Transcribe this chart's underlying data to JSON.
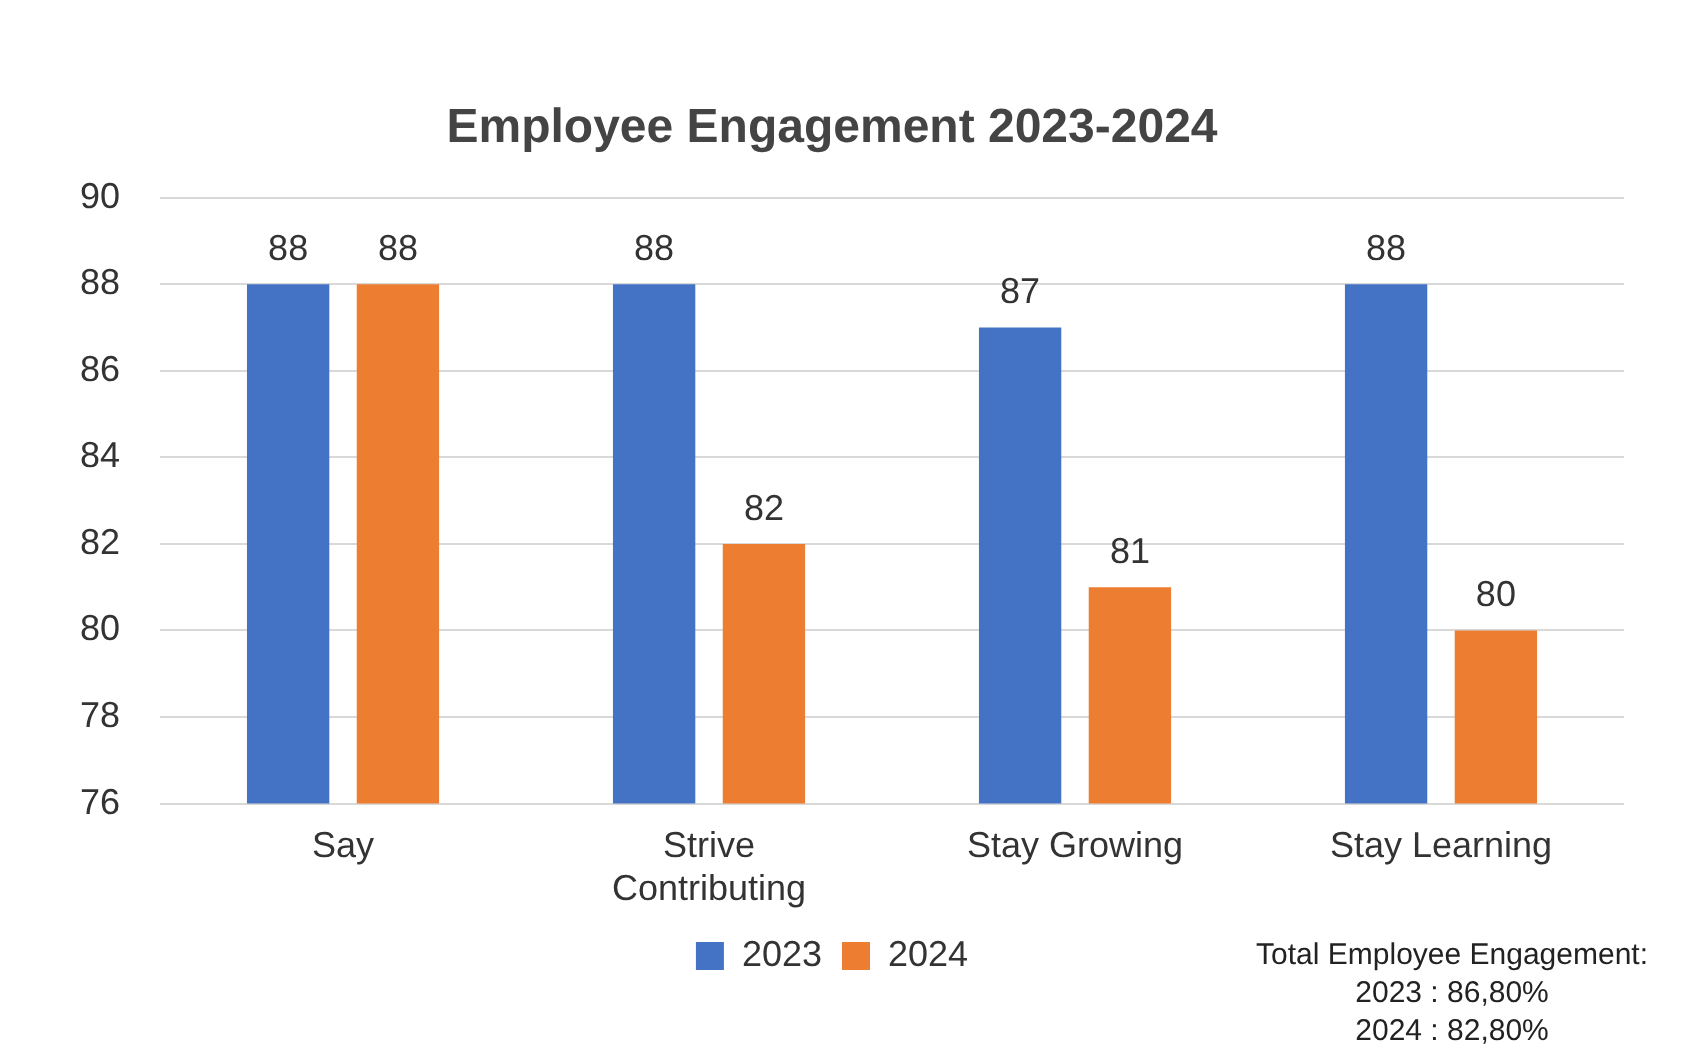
{
  "chart_data": {
    "type": "bar",
    "title": "Employee Engagement 2023-2024",
    "categories": [
      "Say",
      "Strive Contributing",
      "Stay Growing",
      "Stay Learning"
    ],
    "series": [
      {
        "name": "2023",
        "color": "#4472c4",
        "values": [
          88,
          88,
          87,
          88
        ]
      },
      {
        "name": "2024",
        "color": "#ed7d31",
        "values": [
          88,
          82,
          81,
          80
        ]
      }
    ],
    "ylim": [
      76,
      90
    ],
    "yticks": [
      76,
      78,
      80,
      82,
      84,
      86,
      88,
      90
    ],
    "grid": "y",
    "legend": "bottom",
    "data_labels": true,
    "annotations": [
      "Total Employee Engagement:\n2023 : 86,80%\n2024 : 82,80%"
    ]
  }
}
